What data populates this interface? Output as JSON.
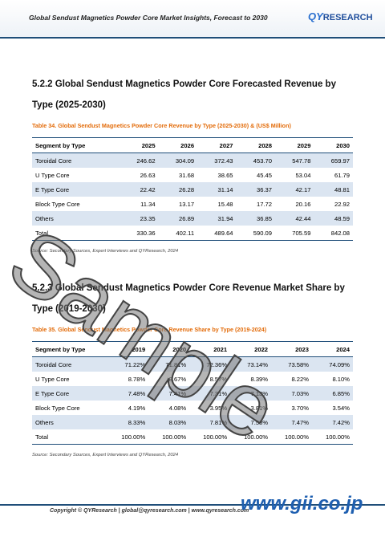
{
  "header": {
    "title": "Global Sendust Magnetics Powder Core Market Insights, Forecast to 2030",
    "logo_qy": "QY",
    "logo_research": "RESEARCH"
  },
  "sections": [
    {
      "heading_line1": "5.2.2  Global Sendust Magnetics Powder Core Forecasted Revenue by",
      "heading_line2": "Type (2025-2030)",
      "caption": "Table 34.   Global Sendust Magnetics Powder Core Revenue by Type (2025-2030) & (US$ Million)",
      "table": {
        "columns": [
          "Segment by Type",
          "2025",
          "2026",
          "2027",
          "2028",
          "2029",
          "2030"
        ],
        "rows": [
          [
            "Toroidal Core",
            "246.62",
            "304.09",
            "372.43",
            "453.70",
            "547.78",
            "659.97"
          ],
          [
            "U Type Core",
            "26.63",
            "31.68",
            "38.65",
            "45.45",
            "53.04",
            "61.79"
          ],
          [
            "E Type Core",
            "22.42",
            "26.28",
            "31.14",
            "36.37",
            "42.17",
            "48.81"
          ],
          [
            "Block Type Core",
            "11.34",
            "13.17",
            "15.48",
            "17.72",
            "20.16",
            "22.92"
          ],
          [
            "Others",
            "23.35",
            "26.89",
            "31.94",
            "36.85",
            "42.44",
            "48.59"
          ],
          [
            "Total",
            "330.36",
            "402.11",
            "489.64",
            "590.09",
            "705.59",
            "842.08"
          ]
        ]
      },
      "source": "Source: Secondary Sources, Expert Interviews and QYResearch, 2024"
    },
    {
      "heading_line1": "5.2.3  Global Sendust Magnetics Powder Core Revenue Market Share by",
      "heading_line2": "Type (2019-2030)",
      "caption": "Table 35.   Global Sendust Magnetics Powder Core Revenue Share by Type (2019-2024)",
      "table": {
        "columns": [
          "Segment by Type",
          "2019",
          "2020",
          "2021",
          "2022",
          "2023",
          "2024"
        ],
        "rows": [
          [
            "Toroidal Core",
            "71.22%",
            "71.81%",
            "72.36%",
            "73.14%",
            "73.58%",
            "74.09%"
          ],
          [
            "U Type Core",
            "8.78%",
            "8.67%",
            "8.57%",
            "8.39%",
            "8.22%",
            "8.10%"
          ],
          [
            "E Type Core",
            "7.48%",
            "7.41%",
            "7.31%",
            "7.13%",
            "7.03%",
            "6.85%"
          ],
          [
            "Block Type Core",
            "4.19%",
            "4.08%",
            "3.95%",
            "3.81%",
            "3.70%",
            "3.54%"
          ],
          [
            "Others",
            "8.33%",
            "8.03%",
            "7.81%",
            "7.53%",
            "7.47%",
            "7.42%"
          ],
          [
            "Total",
            "100.00%",
            "100.00%",
            "100.00%",
            "100.00%",
            "100.00%",
            "100.00%"
          ]
        ]
      },
      "source": "Source: Secondary Sources, Expert Interviews and QYResearch, 2024"
    }
  ],
  "footer": {
    "copyright": "Copyright © QYResearch | global@qyresearch.com | www.qyresearch.com"
  },
  "watermark": "Sample",
  "site": "www.gii.co.jp"
}
